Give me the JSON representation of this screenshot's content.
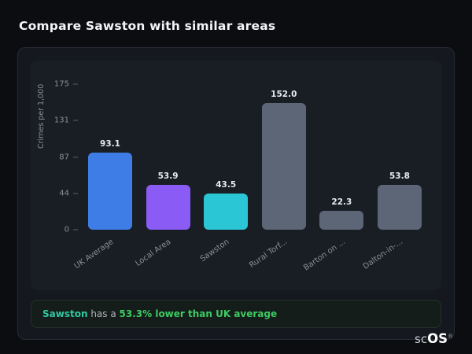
{
  "page": {
    "title": "Compare Sawston with similar areas"
  },
  "chart_data": {
    "type": "bar",
    "title": "Compare Sawston with similar areas",
    "ylabel": "Crimes per 1,000",
    "xlabel": "",
    "ylim": [
      0,
      175
    ],
    "yticks": [
      175,
      131,
      87,
      44,
      0
    ],
    "grid": false,
    "legend": false,
    "categories": [
      "UK Average",
      "Local Area",
      "Sawston",
      "Rural Torf...",
      "Barton on ...",
      "Dalton-in-..."
    ],
    "values": [
      93.1,
      53.9,
      43.5,
      152.0,
      22.3,
      53.8
    ],
    "value_labels": [
      "93.1",
      "53.9",
      "43.5",
      "152.0",
      "22.3",
      "53.8"
    ],
    "bar_colors": [
      "#3f7de6",
      "#8a5cf5",
      "#2bc6d6",
      "#5d6676",
      "#5d6676",
      "#5d6676"
    ]
  },
  "note": {
    "subject": "Sawston",
    "middle": " has a ",
    "highlight": "53.3% lower than UK average"
  },
  "logo": {
    "part1": "sc",
    "part2": "OS",
    "reg": "®"
  }
}
